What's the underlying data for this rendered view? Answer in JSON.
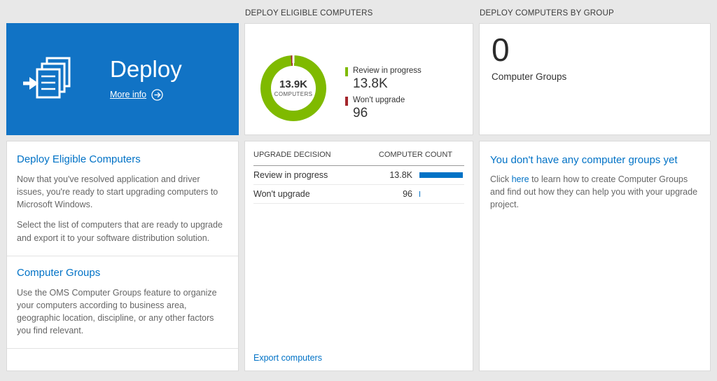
{
  "colors": {
    "tile_blue": "#1173c5",
    "accent_blue": "#0072c6",
    "green": "#7fba00",
    "red": "#a4262c",
    "bar_blue": "#0072c6",
    "page_bg": "#e8e8e8"
  },
  "left_column": {
    "tile": {
      "title": "Deploy",
      "more_info_label": "More info"
    },
    "card": {
      "sections": [
        {
          "heading": "Deploy Eligible Computers",
          "paragraphs": [
            "Now that you've resolved application and driver issues, you're ready to start upgrading computers to Microsoft Windows.",
            "Select the list of computers that are ready to upgrade and export it to your software distribution solution."
          ]
        },
        {
          "heading": "Computer Groups",
          "paragraphs": [
            "Use the OMS Computer Groups feature to organize your computers according to business area, geographic location, discipline, or any other factors you find relevant."
          ]
        }
      ]
    }
  },
  "middle_column": {
    "header": "DEPLOY ELIGIBLE COMPUTERS",
    "donut": {
      "center_value": "13.9K",
      "center_label": "COMPUTERS"
    },
    "legend": [
      {
        "label": "Review in progress",
        "value": "13.8K",
        "color": "#7fba00"
      },
      {
        "label": "Won't upgrade",
        "value": "96",
        "color": "#a4262c"
      }
    ],
    "table": {
      "col_decision": "UPGRADE DECISION",
      "col_count": "COMPUTER COUNT",
      "rows": [
        {
          "label": "Review in progress",
          "count": "13.8K",
          "bar_pct": 97
        },
        {
          "label": "Won't upgrade",
          "count": "96",
          "bar_pct": 2
        }
      ]
    },
    "export_link": "Export computers"
  },
  "right_column": {
    "header": "DEPLOY COMPUTERS BY GROUP",
    "group_count": "0",
    "group_count_label": "Computer Groups",
    "empty_state": {
      "heading": "You don't have any computer groups yet",
      "text_before_link": "Click ",
      "link_text": "here",
      "text_after_link": " to learn how to create Computer Groups and find out how they can help you with your upgrade project."
    }
  },
  "chart_data": {
    "type": "pie",
    "title": "DEPLOY ELIGIBLE COMPUTERS",
    "center_value": "13.9K",
    "center_label": "COMPUTERS",
    "categories": [
      "Review in progress",
      "Won't upgrade"
    ],
    "values": [
      13800,
      96
    ],
    "display_values": [
      "13.8K",
      "96"
    ],
    "colors": [
      "#7fba00",
      "#a4262c"
    ],
    "legend_position": "right"
  }
}
